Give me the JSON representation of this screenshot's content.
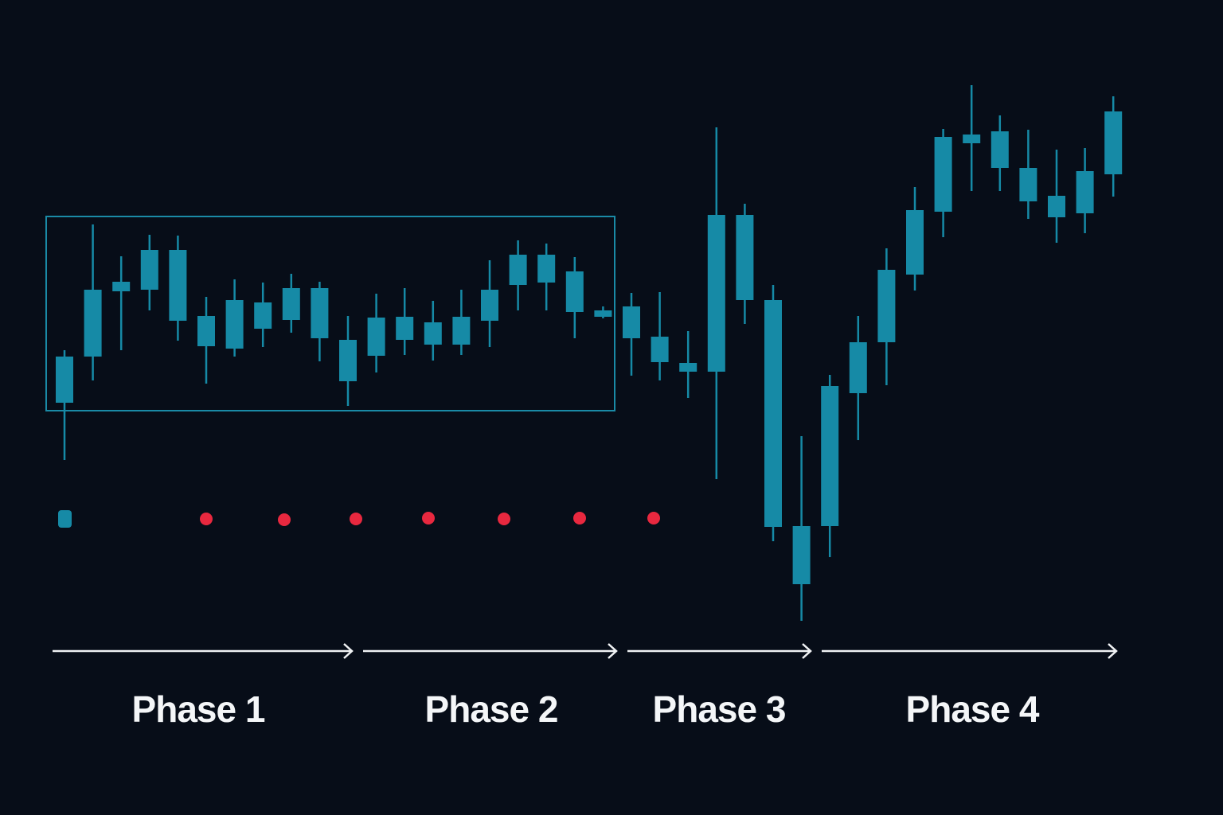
{
  "chart_data": {
    "type": "candlestick",
    "color": "#168aa6",
    "ylim": [
      0,
      100
    ],
    "open": [
      51.8,
      57.6,
      65.8,
      66.0,
      71.0,
      62.7,
      58.6,
      61.1,
      62.2,
      66.2,
      59.7,
      57.7,
      62.6,
      61.9,
      59.1,
      62.1,
      66.6,
      70.4,
      68.3,
      63.4,
      63.9,
      60.1,
      56.8,
      55.7,
      75.4,
      64.7,
      36.3,
      36.3,
      53.0,
      59.4,
      67.9,
      75.8,
      84.4,
      85.9,
      81.3,
      77.8,
      75.6,
      80.5
    ],
    "high": [
      58.4,
      74.2,
      70.2,
      72.9,
      72.8,
      65.1,
      67.3,
      66.9,
      68.0,
      67.0,
      62.7,
      65.5,
      66.2,
      64.6,
      66.0,
      69.7,
      72.2,
      71.8,
      70.1,
      63.9,
      65.6,
      65.7,
      60.8,
      86.4,
      76.8,
      66.6,
      47.6,
      55.3,
      62.7,
      71.2,
      78.9,
      86.2,
      91.7,
      87.9,
      86.1,
      83.6,
      83.8,
      90.3
    ],
    "low": [
      44.6,
      54.6,
      58.4,
      63.4,
      59.6,
      54.2,
      57.6,
      58.8,
      60.6,
      57.0,
      51.4,
      55.6,
      57.8,
      57.1,
      57.8,
      58.8,
      63.4,
      63.4,
      59.9,
      62.4,
      55.2,
      54.6,
      52.4,
      42.2,
      61.7,
      34.4,
      24.4,
      32.4,
      47.1,
      54.0,
      65.9,
      72.6,
      78.4,
      78.4,
      74.9,
      71.9,
      73.1,
      77.7
    ],
    "close": [
      57.6,
      66.0,
      67.0,
      71.0,
      62.1,
      58.9,
      64.7,
      64.4,
      66.2,
      59.9,
      54.5,
      62.5,
      59.7,
      59.1,
      62.6,
      66.0,
      70.4,
      66.9,
      63.2,
      62.6,
      59.9,
      56.9,
      55.7,
      75.4,
      64.7,
      36.2,
      29.0,
      53.9,
      59.4,
      68.5,
      76.0,
      85.2,
      85.5,
      81.3,
      77.1,
      75.1,
      80.9,
      88.4
    ],
    "annotations": [
      "Phase 1",
      "Phase 2",
      "Phase 3",
      "Phase 4"
    ]
  }
}
